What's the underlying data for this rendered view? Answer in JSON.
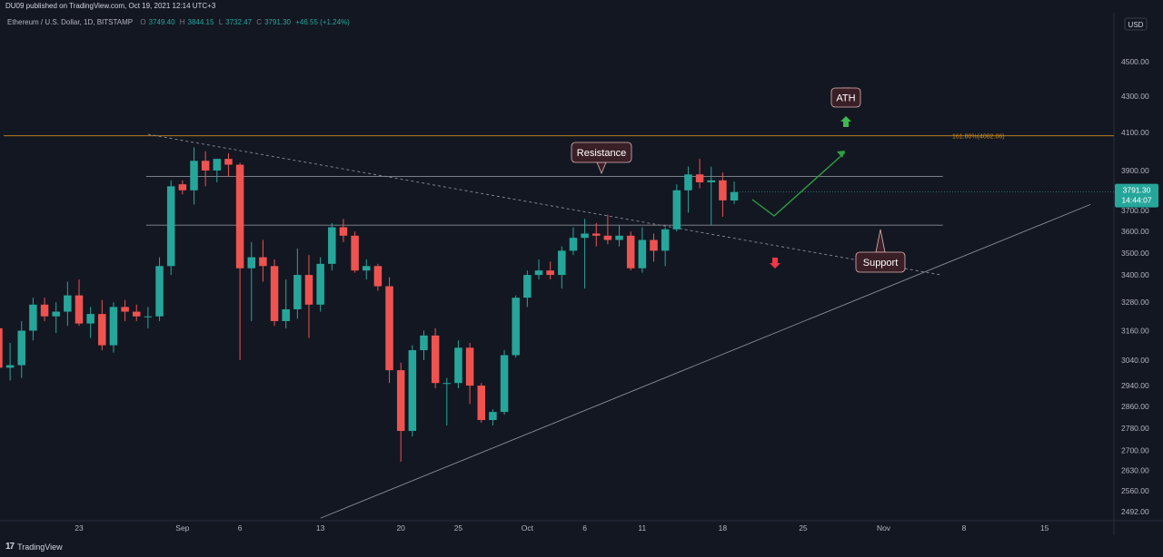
{
  "header": {
    "published": "DU09 published on TradingView.com, Oct 19, 2021 12:14 UTC+3",
    "symbol": "Ethereum / U.S. Dollar, 1D, BITSTAMP",
    "o_label": "O",
    "o_val": "3749.40",
    "h_label": "H",
    "h_val": "3844.15",
    "l_label": "L",
    "l_val": "3732.47",
    "c_label": "C",
    "c_val": "3791.30",
    "change": "+46.55 (+1.24%)"
  },
  "currency_button": "USD",
  "price_badge": {
    "price": "3791.30",
    "countdown": "14:44:07"
  },
  "footer": {
    "brand": "TradingView"
  },
  "colors": {
    "up": "#26a69a",
    "down": "#ef5350",
    "background": "#131722",
    "fib": "#c98a1e"
  },
  "annotations": {
    "resistance": "Resistance",
    "support": "Support",
    "ath": "ATH"
  },
  "chart_data": {
    "type": "candlestick",
    "scale": "log",
    "ylim": [
      2460,
      4780
    ],
    "y_ticks": [
      2492,
      2560,
      2630,
      2700,
      2780,
      2860,
      2940,
      3040,
      3160,
      3280,
      3400,
      3500,
      3600,
      3700,
      3900,
      4100,
      4300,
      4500
    ],
    "y_tick_labels": [
      "2492.00",
      "2560.00",
      "2630.00",
      "2700.00",
      "2780.00",
      "2860.00",
      "2940.00",
      "3040.00",
      "3160.00",
      "3280.00",
      "3400.00",
      "3500.00",
      "3600.00",
      "3700.00",
      "3900.00",
      "4100.00",
      "4300.00",
      "4500.00"
    ],
    "x_labels": [
      {
        "date": "2021-08-23",
        "label": "23"
      },
      {
        "date": "2021-09-01",
        "label": "Sep"
      },
      {
        "date": "2021-09-06",
        "label": "6"
      },
      {
        "date": "2021-09-13",
        "label": "13"
      },
      {
        "date": "2021-09-20",
        "label": "20"
      },
      {
        "date": "2021-09-25",
        "label": "25"
      },
      {
        "date": "2021-10-01",
        "label": "Oct"
      },
      {
        "date": "2021-10-06",
        "label": "6"
      },
      {
        "date": "2021-10-11",
        "label": "11"
      },
      {
        "date": "2021-10-18",
        "label": "18"
      },
      {
        "date": "2021-10-25",
        "label": "25"
      },
      {
        "date": "2021-11-01",
        "label": "Nov"
      },
      {
        "date": "2021-11-08",
        "label": "8"
      },
      {
        "date": "2021-11-15",
        "label": "15"
      }
    ],
    "candles": [
      {
        "date": "2021-08-16",
        "o": 3170,
        "h": 3280,
        "l": 2990,
        "c": 3010
      },
      {
        "date": "2021-08-17",
        "o": 3010,
        "h": 3110,
        "l": 2960,
        "c": 3020
      },
      {
        "date": "2021-08-18",
        "o": 3020,
        "h": 3200,
        "l": 2970,
        "c": 3160
      },
      {
        "date": "2021-08-19",
        "o": 3160,
        "h": 3300,
        "l": 3120,
        "c": 3270
      },
      {
        "date": "2021-08-20",
        "o": 3270,
        "h": 3300,
        "l": 3200,
        "c": 3220
      },
      {
        "date": "2021-08-21",
        "o": 3220,
        "h": 3280,
        "l": 3150,
        "c": 3240
      },
      {
        "date": "2021-08-22",
        "o": 3240,
        "h": 3370,
        "l": 3180,
        "c": 3310
      },
      {
        "date": "2021-08-23",
        "o": 3310,
        "h": 3380,
        "l": 3180,
        "c": 3190
      },
      {
        "date": "2021-08-24",
        "o": 3190,
        "h": 3260,
        "l": 3130,
        "c": 3230
      },
      {
        "date": "2021-08-25",
        "o": 3230,
        "h": 3290,
        "l": 3080,
        "c": 3100
      },
      {
        "date": "2021-08-26",
        "o": 3100,
        "h": 3280,
        "l": 3070,
        "c": 3260
      },
      {
        "date": "2021-08-27",
        "o": 3260,
        "h": 3290,
        "l": 3200,
        "c": 3240
      },
      {
        "date": "2021-08-28",
        "o": 3240,
        "h": 3270,
        "l": 3200,
        "c": 3220
      },
      {
        "date": "2021-08-29",
        "o": 3220,
        "h": 3260,
        "l": 3170,
        "c": 3220
      },
      {
        "date": "2021-08-30",
        "o": 3220,
        "h": 3480,
        "l": 3200,
        "c": 3440
      },
      {
        "date": "2021-08-31",
        "o": 3440,
        "h": 3850,
        "l": 3400,
        "c": 3820
      },
      {
        "date": "2021-09-01",
        "o": 3830,
        "h": 3850,
        "l": 3780,
        "c": 3800
      },
      {
        "date": "2021-09-02",
        "o": 3800,
        "h": 4020,
        "l": 3730,
        "c": 3950
      },
      {
        "date": "2021-09-03",
        "o": 3950,
        "h": 4000,
        "l": 3820,
        "c": 3900
      },
      {
        "date": "2021-09-04",
        "o": 3900,
        "h": 3960,
        "l": 3840,
        "c": 3960
      },
      {
        "date": "2021-09-05",
        "o": 3960,
        "h": 3990,
        "l": 3870,
        "c": 3930
      },
      {
        "date": "2021-09-06",
        "o": 3930,
        "h": 3940,
        "l": 3040,
        "c": 3430
      },
      {
        "date": "2021-09-07",
        "o": 3430,
        "h": 3550,
        "l": 3200,
        "c": 3480
      },
      {
        "date": "2021-09-08",
        "o": 3480,
        "h": 3560,
        "l": 3370,
        "c": 3440
      },
      {
        "date": "2021-09-09",
        "o": 3440,
        "h": 3470,
        "l": 3180,
        "c": 3200
      },
      {
        "date": "2021-09-10",
        "o": 3200,
        "h": 3380,
        "l": 3170,
        "c": 3250
      },
      {
        "date": "2021-09-11",
        "o": 3250,
        "h": 3520,
        "l": 3210,
        "c": 3400
      },
      {
        "date": "2021-09-12",
        "o": 3400,
        "h": 3490,
        "l": 3130,
        "c": 3270
      },
      {
        "date": "2021-09-13",
        "o": 3270,
        "h": 3480,
        "l": 3240,
        "c": 3450
      },
      {
        "date": "2021-09-14",
        "o": 3450,
        "h": 3640,
        "l": 3420,
        "c": 3620
      },
      {
        "date": "2021-09-15",
        "o": 3620,
        "h": 3660,
        "l": 3550,
        "c": 3580
      },
      {
        "date": "2021-09-16",
        "o": 3580,
        "h": 3600,
        "l": 3410,
        "c": 3420
      },
      {
        "date": "2021-09-17",
        "o": 3420,
        "h": 3470,
        "l": 3380,
        "c": 3440
      },
      {
        "date": "2021-09-18",
        "o": 3440,
        "h": 3450,
        "l": 3330,
        "c": 3350
      },
      {
        "date": "2021-09-19",
        "o": 3350,
        "h": 3390,
        "l": 2950,
        "c": 3000
      },
      {
        "date": "2021-09-20",
        "o": 3000,
        "h": 3030,
        "l": 2660,
        "c": 2770
      },
      {
        "date": "2021-09-21",
        "o": 2770,
        "h": 3100,
        "l": 2750,
        "c": 3080
      },
      {
        "date": "2021-09-22",
        "o": 3080,
        "h": 3160,
        "l": 3040,
        "c": 3140
      },
      {
        "date": "2021-09-23",
        "o": 3140,
        "h": 3170,
        "l": 2930,
        "c": 2950
      },
      {
        "date": "2021-09-24",
        "o": 2950,
        "h": 2970,
        "l": 2790,
        "c": 2950
      },
      {
        "date": "2021-09-25",
        "o": 2950,
        "h": 3120,
        "l": 2930,
        "c": 3090
      },
      {
        "date": "2021-09-26",
        "o": 3090,
        "h": 3110,
        "l": 2870,
        "c": 2940
      },
      {
        "date": "2021-09-27",
        "o": 2940,
        "h": 2950,
        "l": 2800,
        "c": 2810
      },
      {
        "date": "2021-09-28",
        "o": 2810,
        "h": 2850,
        "l": 2790,
        "c": 2840
      },
      {
        "date": "2021-09-29",
        "o": 2840,
        "h": 3080,
        "l": 2830,
        "c": 3060
      },
      {
        "date": "2021-09-30",
        "o": 3060,
        "h": 3310,
        "l": 3050,
        "c": 3300
      },
      {
        "date": "2021-10-01",
        "o": 3300,
        "h": 3420,
        "l": 3260,
        "c": 3400
      },
      {
        "date": "2021-10-02",
        "o": 3400,
        "h": 3470,
        "l": 3380,
        "c": 3420
      },
      {
        "date": "2021-10-03",
        "o": 3420,
        "h": 3460,
        "l": 3380,
        "c": 3400
      },
      {
        "date": "2021-10-04",
        "o": 3400,
        "h": 3530,
        "l": 3340,
        "c": 3510
      },
      {
        "date": "2021-10-05",
        "o": 3510,
        "h": 3620,
        "l": 3490,
        "c": 3570
      },
      {
        "date": "2021-10-06",
        "o": 3570,
        "h": 3660,
        "l": 3340,
        "c": 3590
      },
      {
        "date": "2021-10-07",
        "o": 3590,
        "h": 3640,
        "l": 3530,
        "c": 3580
      },
      {
        "date": "2021-10-08",
        "o": 3580,
        "h": 3680,
        "l": 3540,
        "c": 3560
      },
      {
        "date": "2021-10-09",
        "o": 3560,
        "h": 3630,
        "l": 3530,
        "c": 3580
      },
      {
        "date": "2021-10-10",
        "o": 3580,
        "h": 3600,
        "l": 3420,
        "c": 3430
      },
      {
        "date": "2021-10-11",
        "o": 3430,
        "h": 3620,
        "l": 3410,
        "c": 3560
      },
      {
        "date": "2021-10-12",
        "o": 3560,
        "h": 3590,
        "l": 3460,
        "c": 3510
      },
      {
        "date": "2021-10-13",
        "o": 3510,
        "h": 3620,
        "l": 3440,
        "c": 3610
      },
      {
        "date": "2021-10-14",
        "o": 3610,
        "h": 3830,
        "l": 3600,
        "c": 3800
      },
      {
        "date": "2021-10-15",
        "o": 3800,
        "h": 3920,
        "l": 3690,
        "c": 3880
      },
      {
        "date": "2021-10-16",
        "o": 3880,
        "h": 3960,
        "l": 3810,
        "c": 3840
      },
      {
        "date": "2021-10-17",
        "o": 3840,
        "h": 3920,
        "l": 3630,
        "c": 3850
      },
      {
        "date": "2021-10-18",
        "o": 3850,
        "h": 3890,
        "l": 3670,
        "c": 3750
      },
      {
        "date": "2021-10-19",
        "o": 3749.4,
        "h": 3844.15,
        "l": 3732.47,
        "c": 3791.3
      }
    ],
    "levels": [
      {
        "name": "resistance",
        "price": 3870
      },
      {
        "name": "support",
        "price": 3630
      },
      {
        "name": "fib-161.8",
        "price": 4082.06,
        "label": "161.80%(4082.06)"
      }
    ],
    "trendlines": [
      {
        "name": "descending-trendline",
        "start": {
          "date": "2021-08-29",
          "price": 4090
        },
        "end": {
          "date": "2021-11-06",
          "price": 3400
        }
      },
      {
        "name": "ascending-trendline",
        "start": {
          "date": "2021-09-13",
          "price": 2470
        },
        "end": {
          "date": "2021-11-19",
          "price": 3730
        }
      }
    ]
  }
}
